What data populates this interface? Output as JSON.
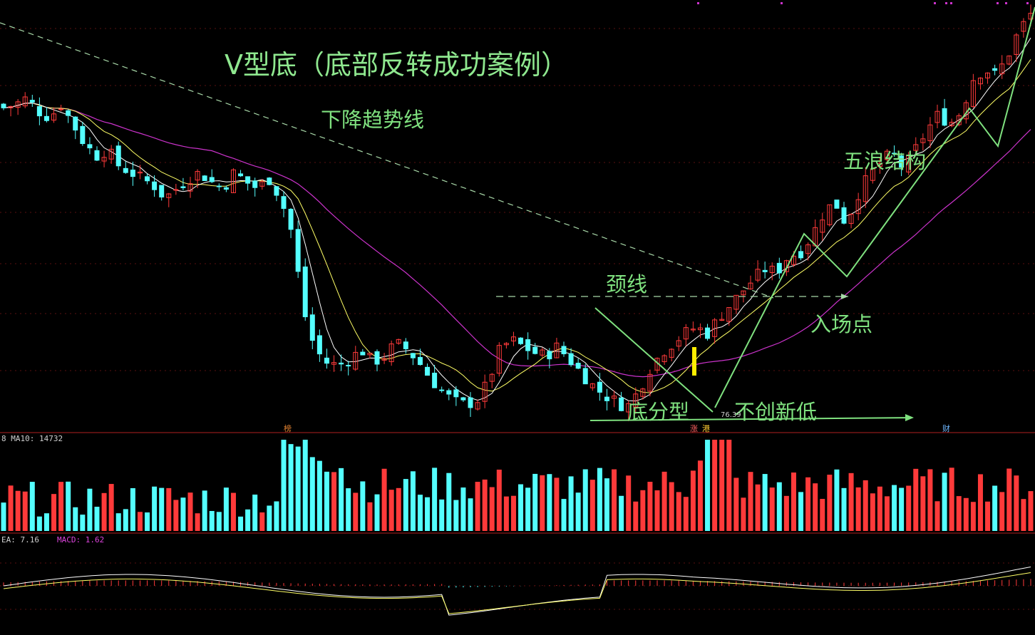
{
  "annotations": {
    "title": "V型底（底部反转成功案例）",
    "downtrend": "下降趋势线",
    "neckline": "颈线",
    "entry": "入场点",
    "five_wave": "五浪结构",
    "bottom_fractal": "底分型",
    "no_new_low": "不创新低",
    "low_price": "76.39"
  },
  "markers": {
    "bang": "榜",
    "zhang": "涨",
    "gang": "港",
    "cai": "财"
  },
  "indicators": {
    "volume_label": "8 MA10: 14732",
    "macd_label_a": "EA: 7.16",
    "macd_label_b": "MACD: 1.62"
  },
  "colors": {
    "up": "#ff3a3a",
    "down": "#54ffff",
    "ma_short": "#ffffff",
    "ma_mid": "#ffff66",
    "ma_long": "#cc33cc",
    "annotation": "#7fe17f"
  },
  "chart_data": {
    "type": "candlestick",
    "title": "V型底（底部反转成功案例）",
    "y_price_range_est": [
      74,
      200
    ],
    "key_price_low": 76.39,
    "close_path_est": [
      [
        0,
        171
      ],
      [
        10,
        172
      ],
      [
        20,
        174
      ],
      [
        30,
        170
      ],
      [
        40,
        168
      ],
      [
        50,
        172
      ],
      [
        60,
        166
      ],
      [
        70,
        160
      ],
      [
        80,
        156
      ],
      [
        90,
        158
      ],
      [
        100,
        153
      ],
      [
        110,
        151
      ],
      [
        120,
        149
      ],
      [
        130,
        147
      ],
      [
        140,
        143
      ],
      [
        150,
        146
      ],
      [
        160,
        149
      ],
      [
        170,
        151
      ],
      [
        180,
        148
      ],
      [
        190,
        146
      ],
      [
        200,
        151
      ],
      [
        210,
        148
      ],
      [
        220,
        146
      ],
      [
        230,
        149
      ],
      [
        240,
        143
      ],
      [
        250,
        132
      ],
      [
        260,
        108
      ],
      [
        270,
        96
      ],
      [
        280,
        92
      ],
      [
        290,
        91
      ],
      [
        300,
        93
      ],
      [
        310,
        96
      ],
      [
        320,
        92
      ],
      [
        330,
        94
      ],
      [
        340,
        98
      ],
      [
        350,
        96
      ],
      [
        360,
        92
      ],
      [
        370,
        87
      ],
      [
        380,
        83
      ],
      [
        390,
        80
      ],
      [
        400,
        79
      ],
      [
        410,
        80
      ],
      [
        420,
        86
      ],
      [
        430,
        96
      ],
      [
        440,
        99
      ],
      [
        450,
        97
      ],
      [
        460,
        95
      ],
      [
        470,
        94
      ],
      [
        480,
        97
      ],
      [
        490,
        93
      ],
      [
        500,
        89
      ],
      [
        510,
        85
      ],
      [
        520,
        82
      ],
      [
        530,
        80
      ],
      [
        540,
        78
      ],
      [
        550,
        83
      ],
      [
        560,
        90
      ],
      [
        570,
        95
      ],
      [
        580,
        98
      ],
      [
        590,
        101
      ],
      [
        600,
        103
      ],
      [
        610,
        101
      ],
      [
        620,
        106
      ],
      [
        630,
        110
      ],
      [
        640,
        114
      ],
      [
        650,
        118
      ],
      [
        660,
        121
      ],
      [
        670,
        120
      ],
      [
        680,
        125
      ],
      [
        690,
        126
      ],
      [
        700,
        131
      ],
      [
        710,
        138
      ],
      [
        720,
        142
      ],
      [
        730,
        135
      ],
      [
        740,
        144
      ],
      [
        750,
        150
      ],
      [
        760,
        154
      ],
      [
        770,
        157
      ],
      [
        780,
        152
      ],
      [
        790,
        158
      ],
      [
        800,
        164
      ],
      [
        810,
        169
      ],
      [
        820,
        166
      ],
      [
        830,
        170
      ],
      [
        840,
        180
      ],
      [
        850,
        183
      ],
      [
        860,
        181
      ],
      [
        870,
        187
      ],
      [
        880,
        195
      ],
      [
        890,
        200
      ]
    ],
    "volume_ma10": 14732,
    "macd": 1.62,
    "dea": 7.16
  }
}
